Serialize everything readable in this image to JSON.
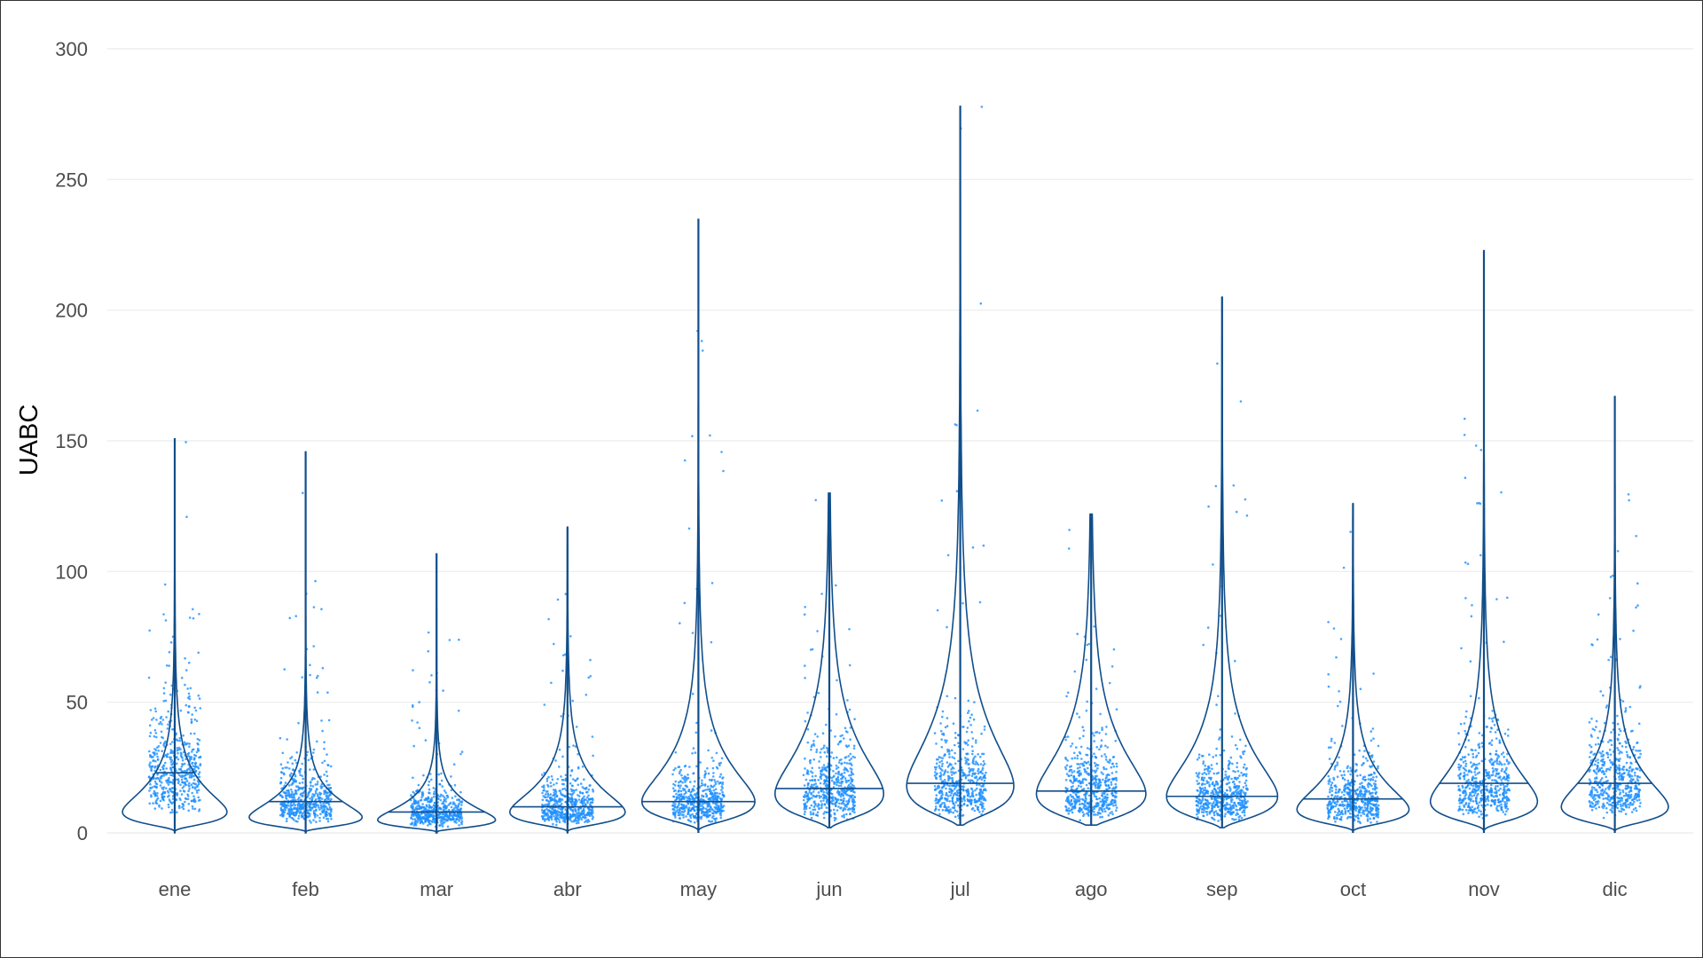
{
  "chart_data": {
    "type": "violin",
    "title": "",
    "xlabel": "",
    "ylabel": "UABC",
    "ylim": [
      0,
      300
    ],
    "yticks": [
      0,
      50,
      100,
      150,
      200,
      250,
      300
    ],
    "grid": true,
    "legend": "none",
    "colors": {
      "points": "#1e90ff",
      "violin": "#104e8b"
    },
    "categories": [
      "ene",
      "feb",
      "mar",
      "abr",
      "may",
      "jun",
      "jul",
      "ago",
      "sep",
      "oct",
      "nov",
      "dic"
    ],
    "series": [
      {
        "category": "ene",
        "min": 0,
        "median": 23,
        "max": 151,
        "mode": 8
      },
      {
        "category": "feb",
        "min": 0,
        "median": 12,
        "max": 146,
        "mode": 6
      },
      {
        "category": "mar",
        "min": 0,
        "median": 8,
        "max": 107,
        "mode": 5
      },
      {
        "category": "abr",
        "min": 0,
        "median": 10,
        "max": 117,
        "mode": 8
      },
      {
        "category": "may",
        "min": 0,
        "median": 12,
        "max": 235,
        "mode": 12
      },
      {
        "category": "jun",
        "min": 2,
        "median": 17,
        "max": 130,
        "mode": 15
      },
      {
        "category": "jul",
        "min": 3,
        "median": 19,
        "max": 278,
        "mode": 18
      },
      {
        "category": "ago",
        "min": 3,
        "median": 16,
        "max": 122,
        "mode": 15
      },
      {
        "category": "sep",
        "min": 2,
        "median": 14,
        "max": 205,
        "mode": 14
      },
      {
        "category": "oct",
        "min": 0,
        "median": 13,
        "max": 126,
        "mode": 9
      },
      {
        "category": "nov",
        "min": 0,
        "median": 19,
        "max": 223,
        "mode": 12
      },
      {
        "category": "dic",
        "min": 0,
        "median": 19,
        "max": 167,
        "mode": 10
      }
    ]
  }
}
